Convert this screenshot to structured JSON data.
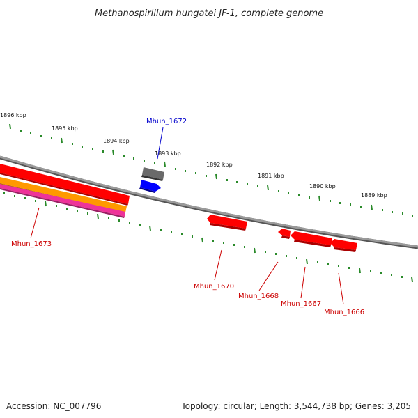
{
  "title": "Methanospirillum hungatei JF-1, complete genome",
  "footer": {
    "accession": "Accession: NC_007796",
    "topology": "Topology: circular; Length: 3,544,738 bp; Genes: 3,205"
  },
  "ruler_labels": [
    "1896 kbp",
    "1895 kbp",
    "1894 kbp",
    "1893 kbp",
    "1892 kbp",
    "1891 kbp",
    "1890 kbp",
    "1889 kbp"
  ],
  "genes": [
    {
      "label": "Mhun_1672",
      "color": "#0000cc",
      "strand": "forward"
    },
    {
      "label": "Mhun_1673",
      "color": "#cc0000",
      "strand": "reverse"
    },
    {
      "label": "Mhun_1670",
      "color": "#cc0000",
      "strand": "reverse"
    },
    {
      "label": "Mhun_1668",
      "color": "#cc0000",
      "strand": "reverse"
    },
    {
      "label": "Mhun_1667",
      "color": "#cc0000",
      "strand": "reverse"
    },
    {
      "label": "Mhun_1666",
      "color": "#cc0000",
      "strand": "reverse"
    }
  ],
  "colors": {
    "backbone": "#808080",
    "tick": "#2a8a2a",
    "gene_forward": "#0000ff",
    "gene_reverse": "#ff0000",
    "gene_gray": "#666666",
    "track_orange": "#ff9900",
    "track_pink": "#ee3399"
  }
}
